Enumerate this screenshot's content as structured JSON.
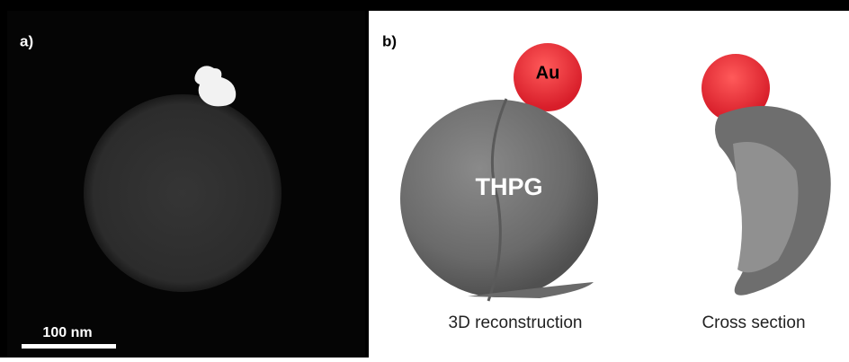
{
  "panel_a": {
    "label": "a)",
    "scale_bar": "100 nm"
  },
  "panel_b": {
    "label": "b)",
    "cap_label": "Au",
    "particle_label": "THPG",
    "captions": [
      "3D reconstruction",
      "Cross section"
    ]
  }
}
